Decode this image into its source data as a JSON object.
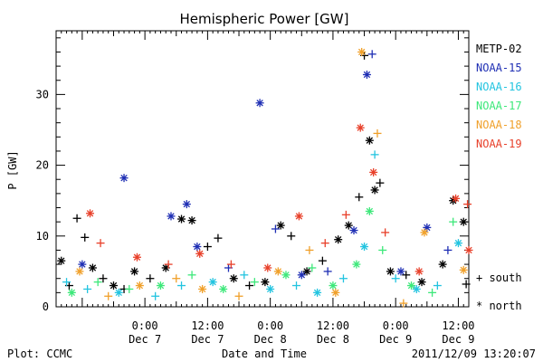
{
  "chart_data": {
    "type": "scatter",
    "title": "Hemispheric Power [GW]",
    "ylabel": "P [GW]",
    "xlabel": "Date and Time",
    "ylim": [
      0,
      39
    ],
    "yticks": [
      0,
      10,
      20,
      30
    ],
    "xlim": [
      "2011-12-06 07:00",
      "2011-12-09 14:00"
    ],
    "xticks": [
      {
        "x": "2011-12-07 00:00",
        "time": "0:00",
        "date": "Dec 7"
      },
      {
        "x": "2011-12-07 12:00",
        "time": "12:00",
        "date": "Dec 7"
      },
      {
        "x": "2011-12-08 00:00",
        "time": "0:00",
        "date": "Dec 8"
      },
      {
        "x": "2011-12-08 12:00",
        "time": "12:00",
        "date": "Dec 8"
      },
      {
        "x": "2011-12-09 00:00",
        "time": "0:00",
        "date": "Dec 9"
      },
      {
        "x": "2011-12-09 12:00",
        "time": "12:00",
        "date": "Dec 9"
      }
    ],
    "grid": false,
    "legend_position": "right",
    "markers": {
      "south": "+",
      "north": "*"
    },
    "series": [
      {
        "name": "METP-02",
        "color": "#000000",
        "points": [
          {
            "x": "2011-12-06 08:00",
            "y": 6.5,
            "m": "north"
          },
          {
            "x": "2011-12-06 09:30",
            "y": 3,
            "m": "south"
          },
          {
            "x": "2011-12-06 11:00",
            "y": 12.5,
            "m": "south"
          },
          {
            "x": "2011-12-06 12:30",
            "y": 9.8,
            "m": "south"
          },
          {
            "x": "2011-12-06 14:00",
            "y": 5.5,
            "m": "north"
          },
          {
            "x": "2011-12-06 16:00",
            "y": 4,
            "m": "south"
          },
          {
            "x": "2011-12-06 18:00",
            "y": 3,
            "m": "north"
          },
          {
            "x": "2011-12-06 20:00",
            "y": 2.5,
            "m": "south"
          },
          {
            "x": "2011-12-06 22:00",
            "y": 5,
            "m": "north"
          },
          {
            "x": "2011-12-07 01:00",
            "y": 4,
            "m": "south"
          },
          {
            "x": "2011-12-07 04:00",
            "y": 5.5,
            "m": "north"
          },
          {
            "x": "2011-12-07 07:00",
            "y": 12.4,
            "m": "north"
          },
          {
            "x": "2011-12-07 09:00",
            "y": 12.2,
            "m": "north"
          },
          {
            "x": "2011-12-07 12:00",
            "y": 8.5,
            "m": "south"
          },
          {
            "x": "2011-12-07 14:00",
            "y": 9.7,
            "m": "south"
          },
          {
            "x": "2011-12-07 17:00",
            "y": 4,
            "m": "north"
          },
          {
            "x": "2011-12-07 20:00",
            "y": 3,
            "m": "south"
          },
          {
            "x": "2011-12-07 23:00",
            "y": 3.5,
            "m": "north"
          },
          {
            "x": "2011-12-08 02:00",
            "y": 11.5,
            "m": "north"
          },
          {
            "x": "2011-12-08 04:00",
            "y": 10,
            "m": "south"
          },
          {
            "x": "2011-12-08 07:00",
            "y": 5,
            "m": "north"
          },
          {
            "x": "2011-12-08 10:00",
            "y": 6.5,
            "m": "south"
          },
          {
            "x": "2011-12-08 13:00",
            "y": 9.5,
            "m": "north"
          },
          {
            "x": "2011-12-08 15:00",
            "y": 11.5,
            "m": "north"
          },
          {
            "x": "2011-12-08 17:00",
            "y": 15.5,
            "m": "south"
          },
          {
            "x": "2011-12-08 18:00",
            "y": 35.5,
            "m": "south"
          },
          {
            "x": "2011-12-08 19:00",
            "y": 23.5,
            "m": "north"
          },
          {
            "x": "2011-12-08 20:00",
            "y": 16.5,
            "m": "north"
          },
          {
            "x": "2011-12-08 21:00",
            "y": 17.5,
            "m": "south"
          },
          {
            "x": "2011-12-08 23:00",
            "y": 5,
            "m": "north"
          },
          {
            "x": "2011-12-09 02:00",
            "y": 4.5,
            "m": "south"
          },
          {
            "x": "2011-12-09 05:00",
            "y": 3.5,
            "m": "north"
          },
          {
            "x": "2011-12-09 09:00",
            "y": 6,
            "m": "north"
          },
          {
            "x": "2011-12-09 11:00",
            "y": 15,
            "m": "north"
          },
          {
            "x": "2011-12-09 13:00",
            "y": 12,
            "m": "north"
          },
          {
            "x": "2011-12-09 13:30",
            "y": 3.2,
            "m": "south"
          }
        ]
      },
      {
        "name": "NOAA-15",
        "color": "#1f2fb4",
        "points": [
          {
            "x": "2011-12-06 12:00",
            "y": 6,
            "m": "north"
          },
          {
            "x": "2011-12-06 20:00",
            "y": 18.2,
            "m": "north"
          },
          {
            "x": "2011-12-07 05:00",
            "y": 12.8,
            "m": "north"
          },
          {
            "x": "2011-12-07 08:00",
            "y": 14.5,
            "m": "north"
          },
          {
            "x": "2011-12-07 10:00",
            "y": 8.5,
            "m": "north"
          },
          {
            "x": "2011-12-07 16:00",
            "y": 5.5,
            "m": "south"
          },
          {
            "x": "2011-12-07 22:00",
            "y": 28.8,
            "m": "north"
          },
          {
            "x": "2011-12-08 01:00",
            "y": 11,
            "m": "south"
          },
          {
            "x": "2011-12-08 06:00",
            "y": 4.5,
            "m": "north"
          },
          {
            "x": "2011-12-08 11:00",
            "y": 5,
            "m": "south"
          },
          {
            "x": "2011-12-08 16:00",
            "y": 10.8,
            "m": "north"
          },
          {
            "x": "2011-12-08 18:30",
            "y": 32.8,
            "m": "north"
          },
          {
            "x": "2011-12-08 19:30",
            "y": 35.7,
            "m": "south"
          },
          {
            "x": "2011-12-09 01:00",
            "y": 5,
            "m": "north"
          },
          {
            "x": "2011-12-09 06:00",
            "y": 11.2,
            "m": "north"
          },
          {
            "x": "2011-12-09 10:00",
            "y": 8,
            "m": "south"
          }
        ]
      },
      {
        "name": "NOAA-16",
        "color": "#23c4e0",
        "points": [
          {
            "x": "2011-12-06 09:00",
            "y": 3.5,
            "m": "south"
          },
          {
            "x": "2011-12-06 13:00",
            "y": 2.5,
            "m": "south"
          },
          {
            "x": "2011-12-06 19:00",
            "y": 2,
            "m": "north"
          },
          {
            "x": "2011-12-07 02:00",
            "y": 1.5,
            "m": "south"
          },
          {
            "x": "2011-12-07 07:00",
            "y": 3,
            "m": "south"
          },
          {
            "x": "2011-12-07 13:00",
            "y": 3.5,
            "m": "north"
          },
          {
            "x": "2011-12-07 19:00",
            "y": 4.5,
            "m": "south"
          },
          {
            "x": "2011-12-08 00:00",
            "y": 2.5,
            "m": "north"
          },
          {
            "x": "2011-12-08 05:00",
            "y": 3,
            "m": "south"
          },
          {
            "x": "2011-12-08 09:00",
            "y": 2,
            "m": "north"
          },
          {
            "x": "2011-12-08 14:00",
            "y": 4,
            "m": "south"
          },
          {
            "x": "2011-12-08 18:00",
            "y": 8.5,
            "m": "north"
          },
          {
            "x": "2011-12-08 20:00",
            "y": 21.5,
            "m": "south"
          },
          {
            "x": "2011-12-09 00:00",
            "y": 4,
            "m": "south"
          },
          {
            "x": "2011-12-09 04:00",
            "y": 2.5,
            "m": "north"
          },
          {
            "x": "2011-12-09 08:00",
            "y": 3,
            "m": "south"
          },
          {
            "x": "2011-12-09 12:00",
            "y": 9,
            "m": "north"
          }
        ]
      },
      {
        "name": "NOAA-17",
        "color": "#3de87a",
        "points": [
          {
            "x": "2011-12-06 10:00",
            "y": 2,
            "m": "north"
          },
          {
            "x": "2011-12-06 15:00",
            "y": 3.5,
            "m": "south"
          },
          {
            "x": "2011-12-06 21:00",
            "y": 2.5,
            "m": "south"
          },
          {
            "x": "2011-12-07 03:00",
            "y": 3,
            "m": "north"
          },
          {
            "x": "2011-12-07 09:00",
            "y": 4.5,
            "m": "south"
          },
          {
            "x": "2011-12-07 15:00",
            "y": 2.5,
            "m": "north"
          },
          {
            "x": "2011-12-07 21:00",
            "y": 3.5,
            "m": "south"
          },
          {
            "x": "2011-12-08 03:00",
            "y": 4.5,
            "m": "north"
          },
          {
            "x": "2011-12-08 08:00",
            "y": 5.5,
            "m": "south"
          },
          {
            "x": "2011-12-08 12:00",
            "y": 3,
            "m": "north"
          },
          {
            "x": "2011-12-08 16:30",
            "y": 6,
            "m": "north"
          },
          {
            "x": "2011-12-08 19:00",
            "y": 13.5,
            "m": "north"
          },
          {
            "x": "2011-12-08 21:30",
            "y": 8,
            "m": "south"
          },
          {
            "x": "2011-12-09 03:00",
            "y": 3,
            "m": "north"
          },
          {
            "x": "2011-12-09 07:00",
            "y": 2,
            "m": "south"
          },
          {
            "x": "2011-12-09 11:00",
            "y": 12,
            "m": "south"
          }
        ]
      },
      {
        "name": "NOAA-18",
        "color": "#f0a02a",
        "points": [
          {
            "x": "2011-12-06 11:30",
            "y": 5,
            "m": "north"
          },
          {
            "x": "2011-12-06 17:00",
            "y": 1.5,
            "m": "south"
          },
          {
            "x": "2011-12-06 23:00",
            "y": 3,
            "m": "north"
          },
          {
            "x": "2011-12-07 06:00",
            "y": 4,
            "m": "south"
          },
          {
            "x": "2011-12-07 11:00",
            "y": 2.5,
            "m": "north"
          },
          {
            "x": "2011-12-07 18:00",
            "y": 1.5,
            "m": "south"
          },
          {
            "x": "2011-12-08 01:30",
            "y": 5,
            "m": "north"
          },
          {
            "x": "2011-12-08 07:30",
            "y": 8,
            "m": "south"
          },
          {
            "x": "2011-12-08 12:30",
            "y": 2,
            "m": "north"
          },
          {
            "x": "2011-12-08 17:30",
            "y": 36,
            "m": "north"
          },
          {
            "x": "2011-12-08 20:30",
            "y": 24.5,
            "m": "south"
          },
          {
            "x": "2011-12-09 01:30",
            "y": 0.5,
            "m": "south"
          },
          {
            "x": "2011-12-09 05:30",
            "y": 10.5,
            "m": "north"
          },
          {
            "x": "2011-12-09 13:00",
            "y": 5.2,
            "m": "north"
          }
        ]
      },
      {
        "name": "NOAA-19",
        "color": "#e8402a",
        "points": [
          {
            "x": "2011-12-06 13:30",
            "y": 13.2,
            "m": "north"
          },
          {
            "x": "2011-12-06 15:30",
            "y": 9,
            "m": "south"
          },
          {
            "x": "2011-12-06 22:30",
            "y": 7,
            "m": "north"
          },
          {
            "x": "2011-12-07 04:30",
            "y": 6,
            "m": "south"
          },
          {
            "x": "2011-12-07 10:30",
            "y": 7.5,
            "m": "north"
          },
          {
            "x": "2011-12-07 16:30",
            "y": 6,
            "m": "south"
          },
          {
            "x": "2011-12-07 23:30",
            "y": 5.5,
            "m": "north"
          },
          {
            "x": "2011-12-08 05:30",
            "y": 12.8,
            "m": "north"
          },
          {
            "x": "2011-12-08 10:30",
            "y": 9,
            "m": "south"
          },
          {
            "x": "2011-12-08 14:30",
            "y": 13,
            "m": "south"
          },
          {
            "x": "2011-12-08 17:15",
            "y": 25.3,
            "m": "north"
          },
          {
            "x": "2011-12-08 19:45",
            "y": 19,
            "m": "north"
          },
          {
            "x": "2011-12-08 22:00",
            "y": 10.5,
            "m": "south"
          },
          {
            "x": "2011-12-09 04:30",
            "y": 5,
            "m": "north"
          },
          {
            "x": "2011-12-09 11:30",
            "y": 15.3,
            "m": "north"
          },
          {
            "x": "2011-12-09 13:45",
            "y": 14.5,
            "m": "south"
          },
          {
            "x": "2011-12-09 14:00",
            "y": 8,
            "m": "north"
          }
        ]
      }
    ]
  },
  "footer": {
    "left": "Plot: CCMC",
    "right": "2011/12/09 13:20:07"
  },
  "legend_markers": {
    "south_label": "+ south",
    "north_label": "* north"
  }
}
